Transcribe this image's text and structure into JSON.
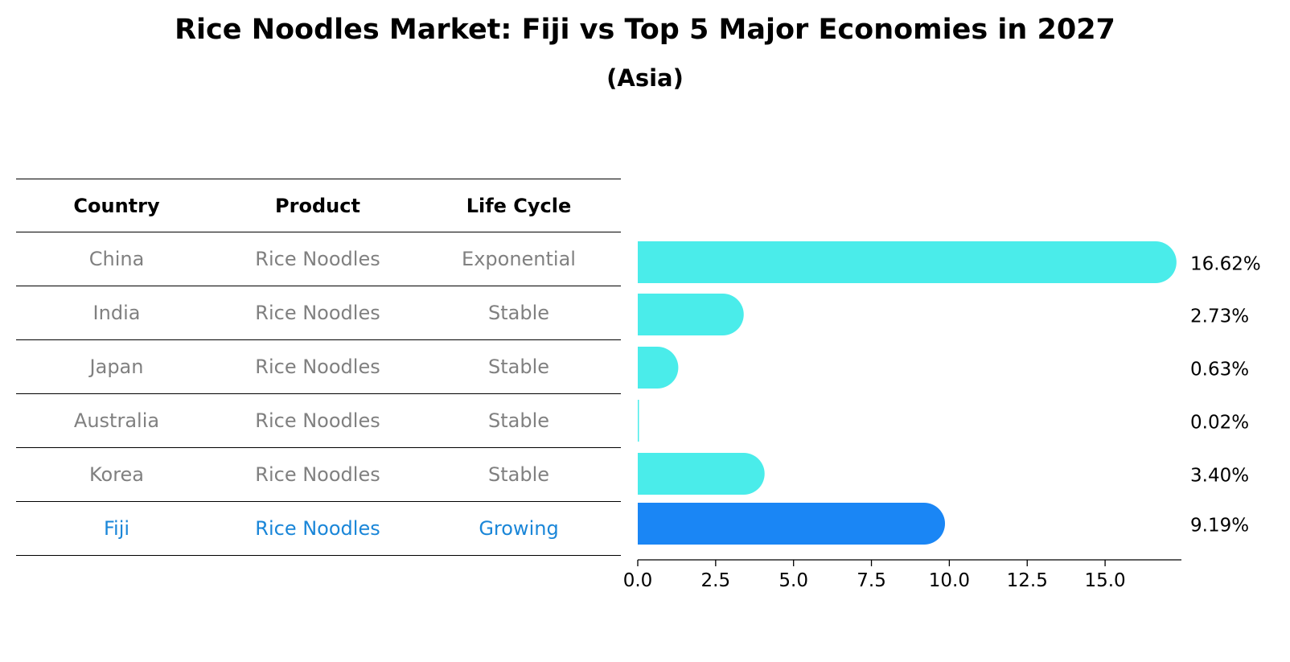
{
  "title": "Rice Noodles Market: Fiji vs Top 5 Major Economies in 2027",
  "subtitle": "(Asia)",
  "table": {
    "headers": [
      "Country",
      "Product",
      "Life Cycle"
    ],
    "rows": [
      {
        "country": "China",
        "product": "Rice Noodles",
        "life_cycle": "Exponential",
        "highlight": false
      },
      {
        "country": "India",
        "product": "Rice Noodles",
        "life_cycle": "Stable",
        "highlight": false
      },
      {
        "country": "Japan",
        "product": "Rice Noodles",
        "life_cycle": "Stable",
        "highlight": false
      },
      {
        "country": "Australia",
        "product": "Rice Noodles",
        "life_cycle": "Stable",
        "highlight": false
      },
      {
        "country": "Korea",
        "product": "Rice Noodles",
        "life_cycle": "Stable",
        "highlight": false
      },
      {
        "country": "Fiji",
        "product": "Rice Noodles",
        "life_cycle": "Growing",
        "highlight": true
      }
    ]
  },
  "colors": {
    "bar": "#4aecea",
    "highlight_bar": "#1a86f5",
    "row_text": "#808080",
    "highlight_text": "#1a86d8"
  },
  "chart_data": {
    "type": "bar",
    "orientation": "horizontal",
    "categories": [
      "China",
      "India",
      "Japan",
      "Australia",
      "Korea",
      "Fiji"
    ],
    "values": [
      16.62,
      2.73,
      0.63,
      0.02,
      3.4,
      9.19
    ],
    "value_labels": [
      "16.62%",
      "2.73%",
      "0.63%",
      "0.02%",
      "3.40%",
      "9.19%"
    ],
    "highlight_index": 5,
    "xlim": [
      0,
      17.45
    ],
    "x_ticks": [
      0.0,
      2.5,
      5.0,
      7.5,
      10.0,
      12.5,
      15.0
    ],
    "x_tick_labels": [
      "0.0",
      "2.5",
      "5.0",
      "7.5",
      "10.0",
      "12.5",
      "15.0"
    ],
    "xlabel": "",
    "ylabel": "",
    "grid": false
  }
}
